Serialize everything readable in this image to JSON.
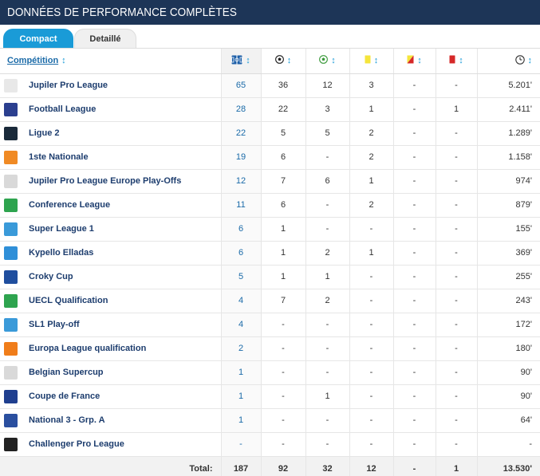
{
  "header": {
    "title": "DONNÉES DE PERFORMANCE COMPLÈTES"
  },
  "tabs": [
    {
      "label": "Compact",
      "active": true
    },
    {
      "label": "Detaillé",
      "active": false
    }
  ],
  "table": {
    "competition_header": "Compétition",
    "sort_symbol": "↕",
    "columns": [
      {
        "icon": "pitch-icon",
        "meaning": "appearances"
      },
      {
        "icon": "goal-ball-icon",
        "meaning": "goals"
      },
      {
        "icon": "assist-ball-icon",
        "meaning": "assists"
      },
      {
        "icon": "yellow-card-icon",
        "meaning": "yellow cards"
      },
      {
        "icon": "second-yellow-card-icon",
        "meaning": "second yellow cards"
      },
      {
        "icon": "red-card-icon",
        "meaning": "red cards"
      },
      {
        "icon": "clock-icon",
        "meaning": "minutes played"
      }
    ],
    "rows": [
      {
        "competition": "Jupiler Pro League",
        "logo": "jupiler-pro-league-logo",
        "logo_color": "#e8e8e8",
        "values": [
          "65",
          "36",
          "12",
          "3",
          "-",
          "-",
          "5.201'"
        ]
      },
      {
        "competition": "Football League",
        "logo": "football-league-logo",
        "logo_color": "#2b3f8f",
        "values": [
          "28",
          "22",
          "3",
          "1",
          "-",
          "1",
          "2.411'"
        ]
      },
      {
        "competition": "Ligue 2",
        "logo": "ligue-2-logo",
        "logo_color": "#1a2a3a",
        "values": [
          "22",
          "5",
          "5",
          "2",
          "-",
          "-",
          "1.289'"
        ]
      },
      {
        "competition": "1ste Nationale",
        "logo": "1ste-nationale-logo",
        "logo_color": "#f08a24",
        "values": [
          "19",
          "6",
          "-",
          "2",
          "-",
          "-",
          "1.158'"
        ]
      },
      {
        "competition": "Jupiler Pro League Europe Play-Offs",
        "logo": "europe-play-offs-logo",
        "logo_color": "#d9d9d9",
        "values": [
          "12",
          "7",
          "6",
          "1",
          "-",
          "-",
          "974'"
        ]
      },
      {
        "competition": "Conference League",
        "logo": "conference-league-logo",
        "logo_color": "#2ea44f",
        "values": [
          "11",
          "6",
          "-",
          "2",
          "-",
          "-",
          "879'"
        ]
      },
      {
        "competition": "Super League 1",
        "logo": "super-league-1-logo",
        "logo_color": "#3a9ad9",
        "values": [
          "6",
          "1",
          "-",
          "-",
          "-",
          "-",
          "155'"
        ]
      },
      {
        "competition": "Kypello Elladas",
        "logo": "kypello-elladas-logo",
        "logo_color": "#2f8fd8",
        "values": [
          "6",
          "1",
          "2",
          "1",
          "-",
          "-",
          "369'"
        ]
      },
      {
        "competition": "Croky Cup",
        "logo": "croky-cup-logo",
        "logo_color": "#1f4e9e",
        "values": [
          "5",
          "1",
          "1",
          "-",
          "-",
          "-",
          "255'"
        ]
      },
      {
        "competition": "UECL Qualification",
        "logo": "uecl-qualification-logo",
        "logo_color": "#2ea44f",
        "values": [
          "4",
          "7",
          "2",
          "-",
          "-",
          "-",
          "243'"
        ]
      },
      {
        "competition": "SL1 Play-off",
        "logo": "sl1-play-off-logo",
        "logo_color": "#3a9ad9",
        "values": [
          "4",
          "-",
          "-",
          "-",
          "-",
          "-",
          "172'"
        ]
      },
      {
        "competition": "Europa League qualification",
        "logo": "europa-league-logo",
        "logo_color": "#f07d1a",
        "values": [
          "2",
          "-",
          "-",
          "-",
          "-",
          "-",
          "180'"
        ]
      },
      {
        "competition": "Belgian Supercup",
        "logo": "belgian-supercup-logo",
        "logo_color": "#d9d9d9",
        "values": [
          "1",
          "-",
          "-",
          "-",
          "-",
          "-",
          "90'"
        ]
      },
      {
        "competition": "Coupe de France",
        "logo": "coupe-de-france-logo",
        "logo_color": "#1f3f8f",
        "values": [
          "1",
          "-",
          "1",
          "-",
          "-",
          "-",
          "90'"
        ]
      },
      {
        "competition": "National 3 - Grp. A",
        "logo": "national-3-logo",
        "logo_color": "#2a4f9f",
        "values": [
          "1",
          "-",
          "-",
          "-",
          "-",
          "-",
          "64'"
        ]
      },
      {
        "competition": "Challenger Pro League",
        "logo": "challenger-pro-league-logo",
        "logo_color": "#222222",
        "values": [
          "-",
          "-",
          "-",
          "-",
          "-",
          "-",
          "-"
        ]
      }
    ],
    "totals": {
      "label": "Total:",
      "values": [
        "187",
        "92",
        "32",
        "12",
        "-",
        "1",
        "13.530'"
      ]
    }
  },
  "colors": {
    "header_bg": "#1d3557",
    "tab_active": "#1a9bd7",
    "link": "#1d3d6e",
    "yellow_card": "#f5e53b",
    "red_card": "#d62828"
  }
}
